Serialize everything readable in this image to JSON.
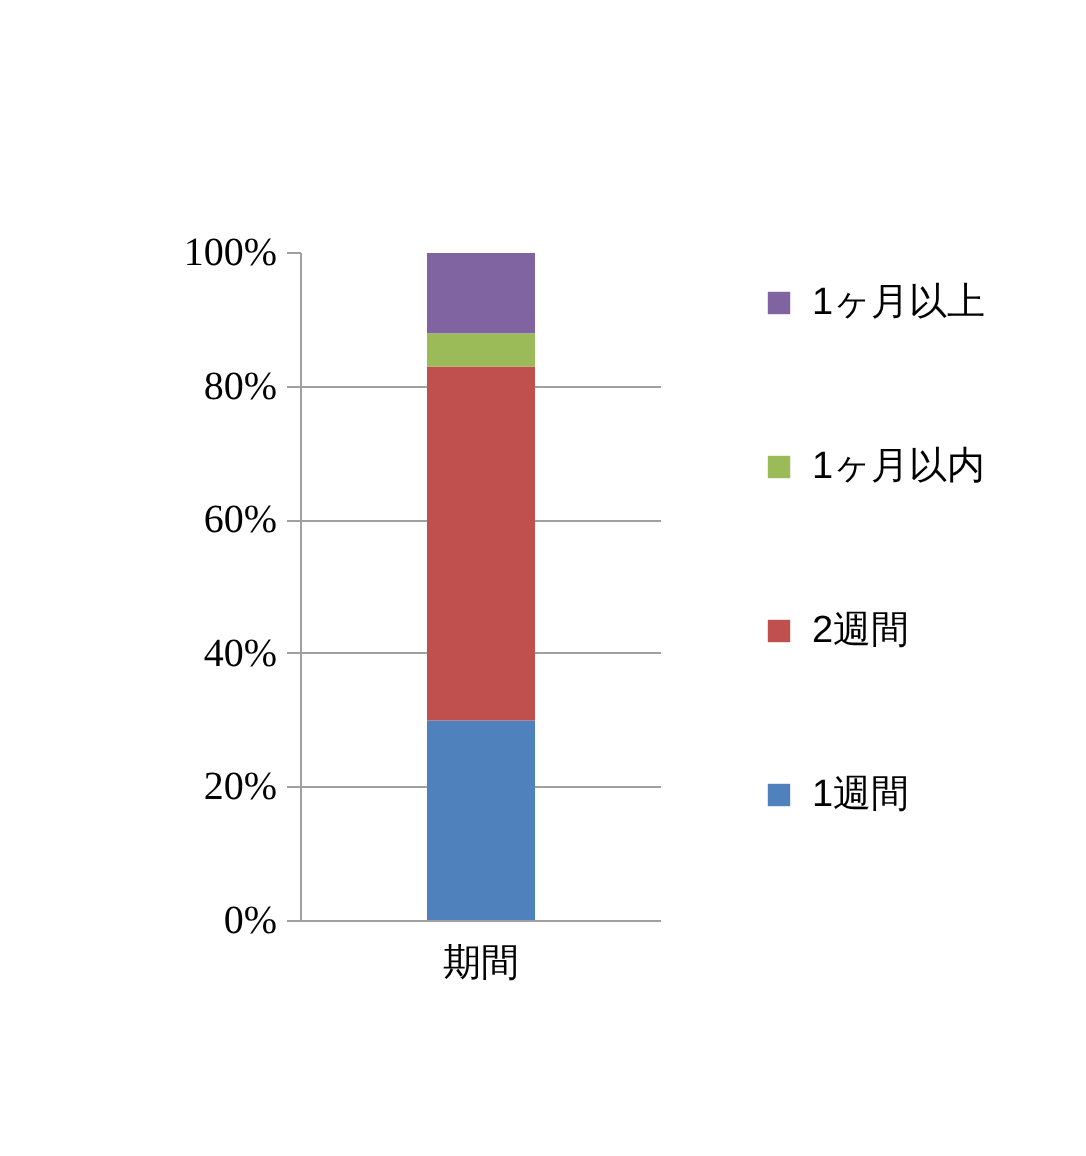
{
  "chart_data": {
    "type": "bar",
    "stacked": true,
    "categories": [
      "期間"
    ],
    "series": [
      {
        "name": "1週間",
        "color": "#4f81bd",
        "values": [
          30
        ]
      },
      {
        "name": "2週間",
        "color": "#c0504d",
        "values": [
          53
        ]
      },
      {
        "name": "1ヶ月以内",
        "color": "#9bbb59",
        "values": [
          5
        ]
      },
      {
        "name": "1ヶ月以上",
        "color": "#8064a2",
        "values": [
          12
        ]
      }
    ],
    "ylim": [
      0,
      100
    ],
    "yticks": [
      {
        "value": 0,
        "label": "0%"
      },
      {
        "value": 20,
        "label": "20%"
      },
      {
        "value": 40,
        "label": "40%"
      },
      {
        "value": 60,
        "label": "60%"
      },
      {
        "value": 80,
        "label": "80%"
      },
      {
        "value": 100,
        "label": "100%"
      }
    ],
    "grid": "y",
    "legend": "right"
  }
}
